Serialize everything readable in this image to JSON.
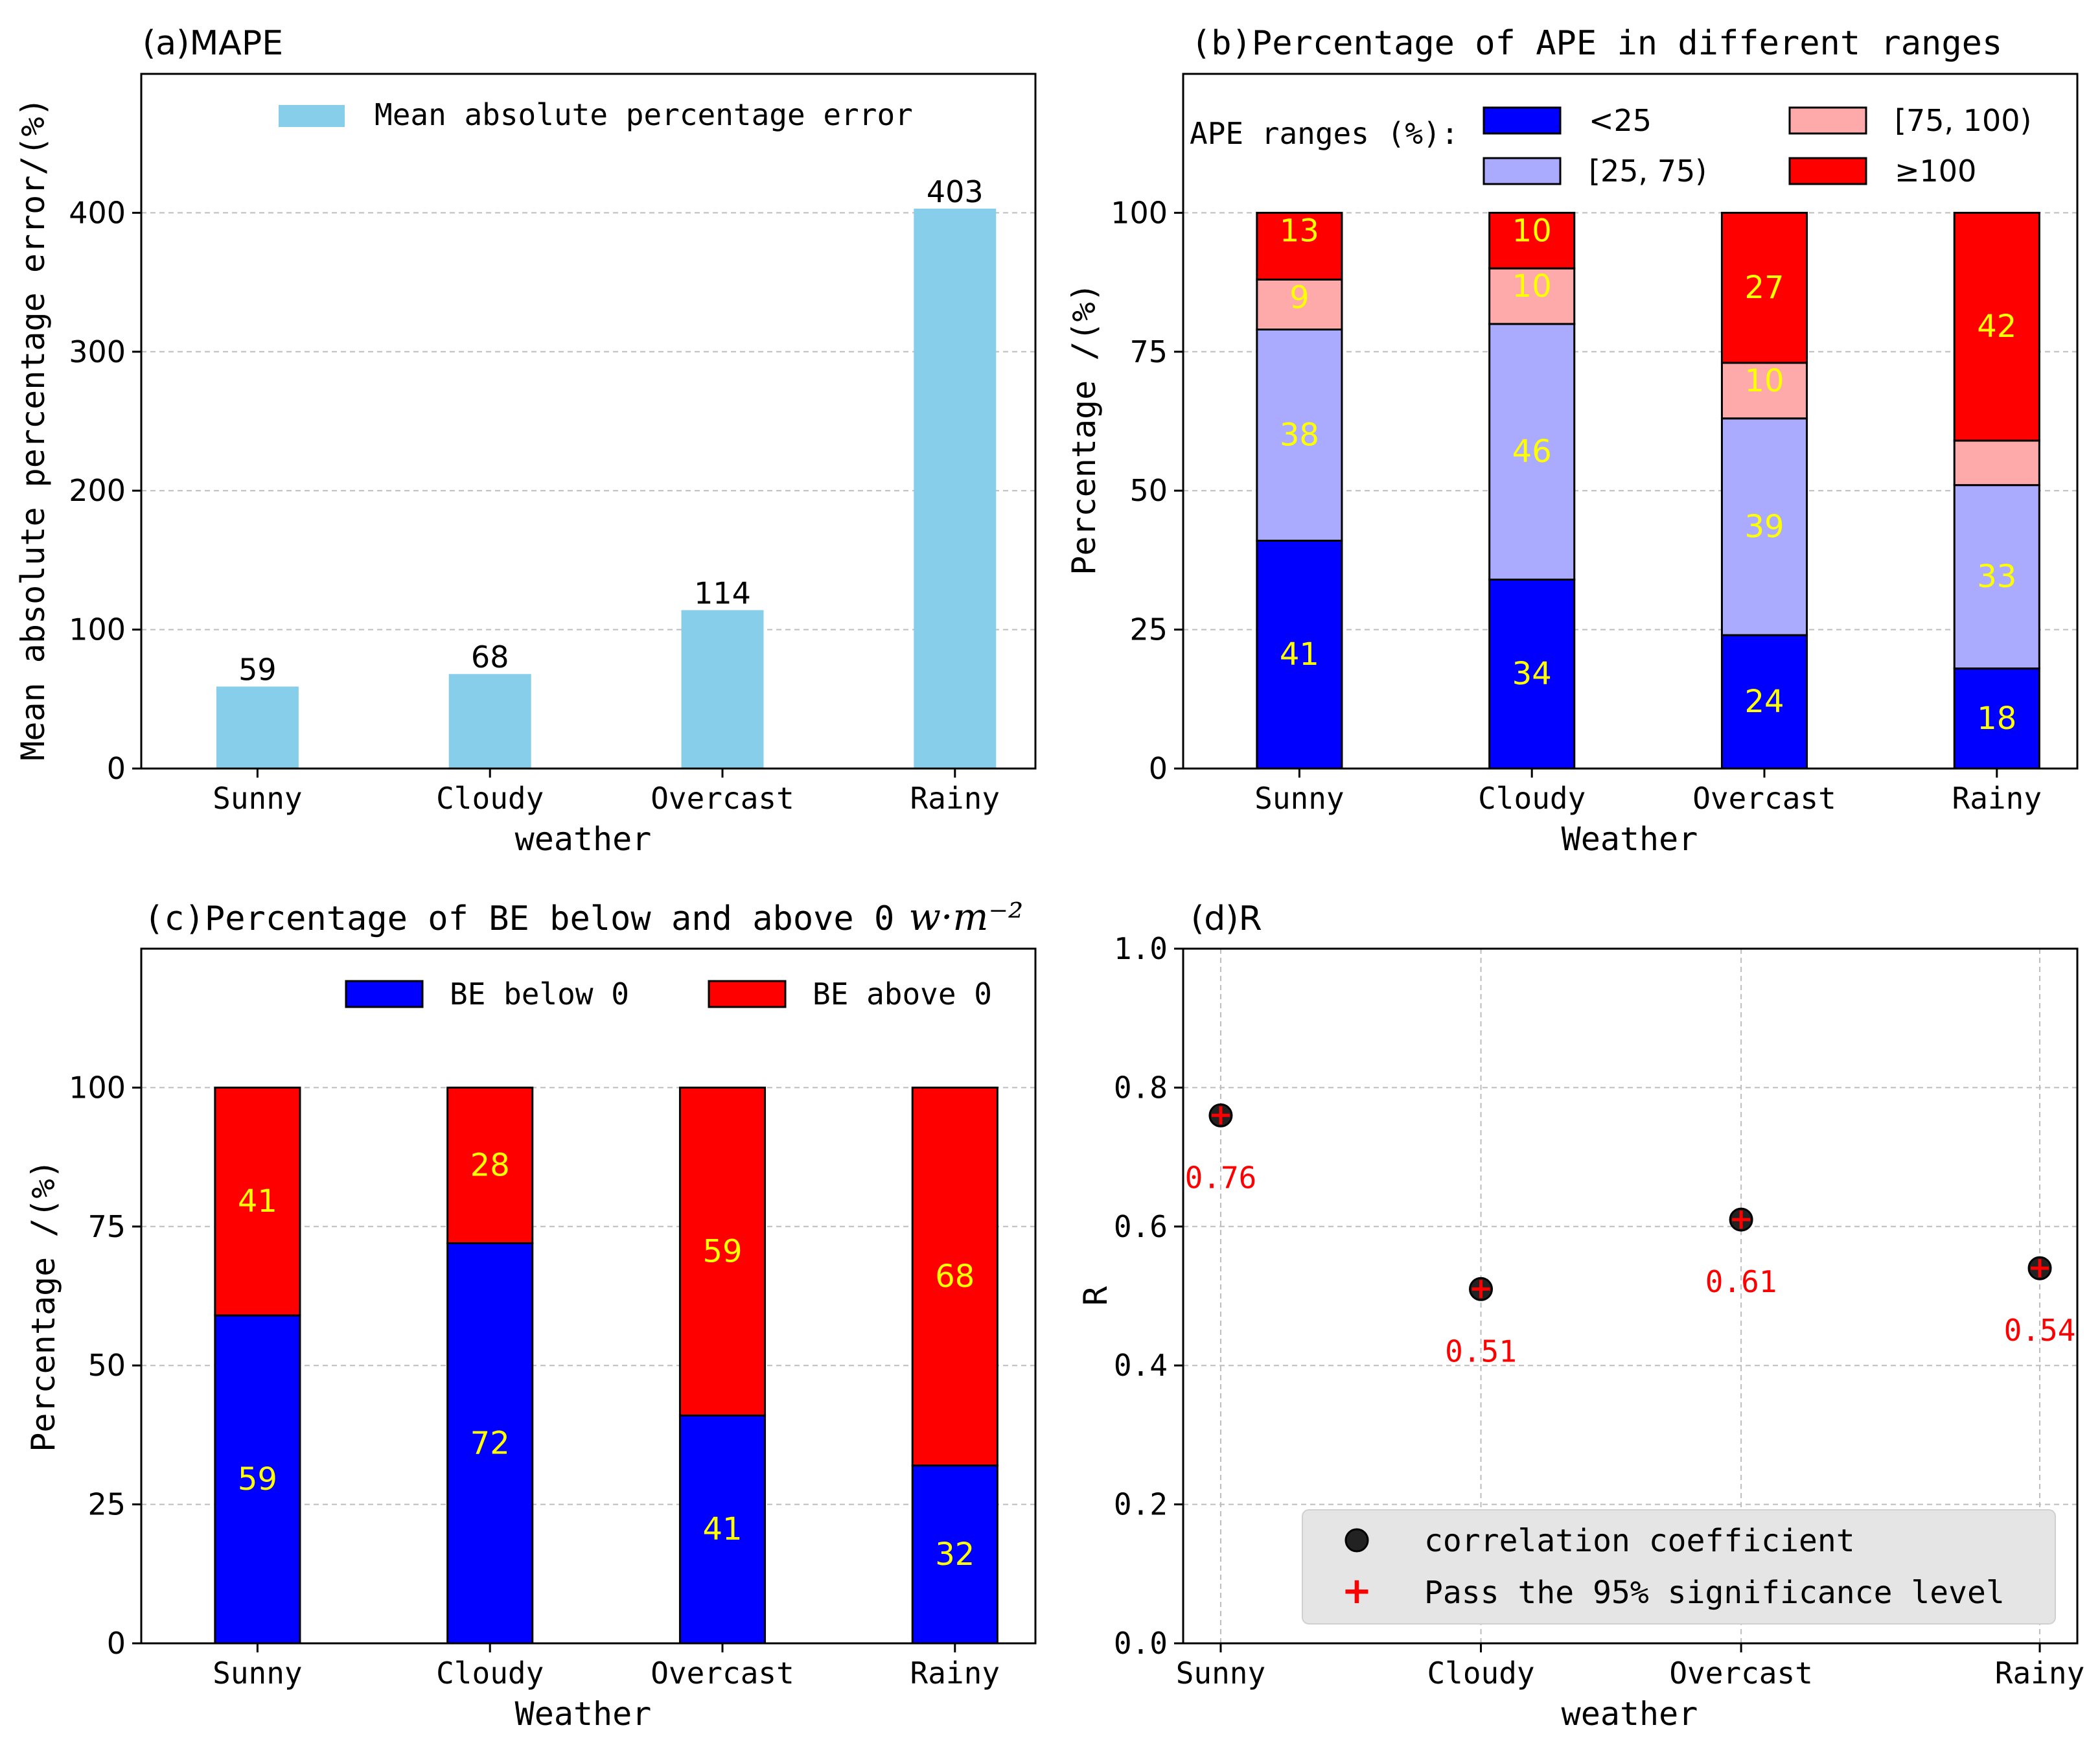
{
  "chart_data": [
    {
      "type": "bar",
      "title": "(a)MAPE",
      "xlabel": "weather",
      "ylabel": "Mean absolute percentage error/(%)",
      "categories": [
        "Sunny",
        "Cloudy",
        "Overcast",
        "Rainy"
      ],
      "series": [
        {
          "name": "Mean absolute percentage error",
          "values": [
            59,
            68,
            114,
            403
          ],
          "color": "#87ceeb"
        }
      ],
      "data_labels": [
        "59",
        "68",
        "114",
        "403"
      ],
      "ylim": [
        0,
        500
      ],
      "yticks": [
        0,
        100,
        200,
        300,
        400
      ],
      "ytick_labels": [
        "0",
        "100",
        "200",
        "300",
        "400"
      ],
      "grid": true,
      "legend_position": "top-center"
    },
    {
      "type": "bar",
      "stacked": true,
      "title": "(b)Percentage of APE in different ranges",
      "xlabel": "Weather",
      "ylabel": "Percentage /(%)",
      "categories": [
        "Sunny",
        "Cloudy",
        "Overcast",
        "Rainy"
      ],
      "legend_title": "APE ranges (%):",
      "series": [
        {
          "name": "<25",
          "values": [
            41,
            34,
            24,
            18
          ],
          "color": "#0000ff"
        },
        {
          "name": "[25, 75)",
          "values": [
            38,
            46,
            39,
            33
          ],
          "color": "#aaaaff"
        },
        {
          "name": "[75, 100)",
          "values": [
            9,
            10,
            10,
            8
          ],
          "color": "#ffaaaa"
        },
        {
          "name": "≥100",
          "values": [
            13,
            10,
            27,
            42
          ],
          "color": "#ff0000"
        }
      ],
      "segment_labels": [
        [
          "41",
          "34",
          "24",
          "18"
        ],
        [
          "38",
          "46",
          "39",
          "33"
        ],
        [
          "9",
          "10",
          "10",
          ""
        ],
        [
          "13",
          "10",
          "27",
          "42"
        ]
      ],
      "ylim": [
        0,
        125
      ],
      "yticks": [
        0,
        25,
        50,
        75,
        100
      ],
      "ytick_labels": [
        "0",
        "25",
        "50",
        "75",
        "100"
      ],
      "grid": true,
      "legend_position": "top"
    },
    {
      "type": "bar",
      "stacked": true,
      "title": "(c)Percentage of BE below and above 0",
      "title_unit": "w·m⁻²",
      "xlabel": "Weather",
      "ylabel": "Percentage /(%)",
      "categories": [
        "Sunny",
        "Cloudy",
        "Overcast",
        "Rainy"
      ],
      "series": [
        {
          "name": "BE below 0",
          "values": [
            59,
            72,
            41,
            32
          ],
          "color": "#0000ff"
        },
        {
          "name": "BE above 0",
          "values": [
            41,
            28,
            59,
            68
          ],
          "color": "#ff0000"
        }
      ],
      "segment_labels": [
        [
          "59",
          "72",
          "41",
          "32"
        ],
        [
          "41",
          "28",
          "59",
          "68"
        ]
      ],
      "ylim": [
        0,
        125
      ],
      "yticks": [
        0,
        25,
        50,
        75,
        100
      ],
      "ytick_labels": [
        "0",
        "25",
        "50",
        "75",
        "100"
      ],
      "grid": true,
      "legend_position": "top"
    },
    {
      "type": "scatter",
      "title": "(d)R",
      "xlabel": "weather",
      "ylabel": "R",
      "categories": [
        "Sunny",
        "Cloudy",
        "Overcast",
        "Rainy"
      ],
      "series": [
        {
          "name": "correlation coefficient",
          "values": [
            0.76,
            0.51,
            0.61,
            0.54
          ],
          "color": "#222222"
        },
        {
          "name": "Pass the 95% significance level",
          "values": [
            0.76,
            0.51,
            0.61,
            0.54
          ],
          "color": "#ff0000"
        }
      ],
      "data_labels": [
        "0.76",
        "0.51",
        "0.61",
        "0.54"
      ],
      "ylim": [
        0,
        1.0
      ],
      "yticks": [
        0,
        0.2,
        0.4,
        0.6,
        0.8,
        1.0
      ],
      "ytick_labels": [
        "0.0",
        "0.2",
        "0.4",
        "0.6",
        "0.8",
        "1.0"
      ],
      "grid": true,
      "legend_position": "bottom-right"
    }
  ]
}
